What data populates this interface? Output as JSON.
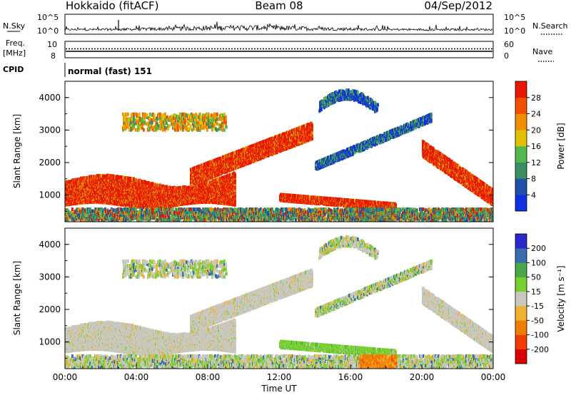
{
  "header": {
    "radar": "Hokkaido (fitACF)",
    "beam": "Beam 08",
    "date": "04/Sep/2012"
  },
  "strips": {
    "nsky_label": "N.Sky",
    "nsky_scale_hi": "10^5",
    "nsky_scale_lo": "10^0",
    "nsearch_label": "N.Search",
    "freq_label_1": "Freq.",
    "freq_label_2": "[MHz]",
    "freq_left_hi": "10",
    "freq_left_lo": "8",
    "nave_scale_hi": "60",
    "nave_scale_lo": "0",
    "nave_label": "Nave",
    "cpid_label": "CPID",
    "cpid_value": "normal (fast) 151"
  },
  "chart_data": [
    {
      "type": "heatmap",
      "quantity": "power",
      "ylabel": "Slant Range [km]",
      "yticks": [
        "1000",
        "2000",
        "3000",
        "4000"
      ],
      "ylim": [
        180,
        4500
      ],
      "xlim": [
        0,
        24
      ],
      "colorbar": {
        "title": "Power [dB]",
        "tick_labels": [
          "4",
          "8",
          "12",
          "16",
          "20",
          "24",
          "28"
        ],
        "range": [
          0,
          33
        ],
        "colors": [
          "#1030e0",
          "#2050a8",
          "#3c8c64",
          "#50b84c",
          "#e0c000",
          "#f08c00",
          "#f05000",
          "#e81800"
        ]
      },
      "regions": [
        {
          "t0": 0.0,
          "t1": 9.5,
          "r0": 600,
          "r1": 1700,
          "level": "high"
        },
        {
          "t0": 7.0,
          "t1": 14.0,
          "r0": 1300,
          "r1": 2900,
          "level": "high"
        },
        {
          "t0": 3.2,
          "t1": 9.0,
          "r0": 2900,
          "r1": 3500,
          "level": "mid"
        },
        {
          "t0": 12.0,
          "t1": 18.5,
          "r0": 500,
          "r1": 1000,
          "level": "high"
        },
        {
          "t0": 14.0,
          "t1": 20.8,
          "r0": 1500,
          "r1": 4300,
          "level": "low"
        },
        {
          "t0": 20.0,
          "t1": 24.0,
          "r0": 400,
          "r1": 2500,
          "level": "high"
        },
        {
          "t0": 0.0,
          "t1": 24.0,
          "r0": 180,
          "r1": 550,
          "level": "mixed"
        }
      ]
    },
    {
      "type": "heatmap",
      "quantity": "velocity",
      "ylabel": "Slant Range [km]",
      "xlabel": "Time UT",
      "yticks": [
        "1000",
        "2000",
        "3000",
        "4000"
      ],
      "xticks": [
        "00:00",
        "04:00",
        "08:00",
        "12:00",
        "16:00",
        "20:00",
        "00:00"
      ],
      "xlim": [
        0,
        24
      ],
      "ylim": [
        180,
        4500
      ],
      "colorbar": {
        "title": "Velocity [m s⁻¹]",
        "tick_labels": [
          "200",
          "100",
          "50",
          "15",
          "-15",
          "-50",
          "-100",
          "-200"
        ],
        "range": [
          -250,
          250
        ],
        "colors": [
          "#d80000",
          "#f03c00",
          "#f07c00",
          "#f0b030",
          "#c8c8c0",
          "#78d030",
          "#48a848",
          "#3c6cb0",
          "#2828c8"
        ]
      },
      "regions": [
        {
          "t0": 0.0,
          "t1": 14.0,
          "r0": 600,
          "r1": 2900,
          "level": "near-zero"
        },
        {
          "t0": 12.0,
          "t1": 18.5,
          "r0": 500,
          "r1": 1000,
          "level": "moderate-positive"
        },
        {
          "t0": 14.0,
          "t1": 20.8,
          "r0": 1500,
          "r1": 4300,
          "level": "mixed"
        },
        {
          "t0": 16.5,
          "t1": 18.5,
          "r0": 180,
          "r1": 500,
          "level": "moderate-negative"
        },
        {
          "t0": 20.0,
          "t1": 24.0,
          "r0": 400,
          "r1": 2500,
          "level": "near-zero"
        }
      ]
    }
  ]
}
